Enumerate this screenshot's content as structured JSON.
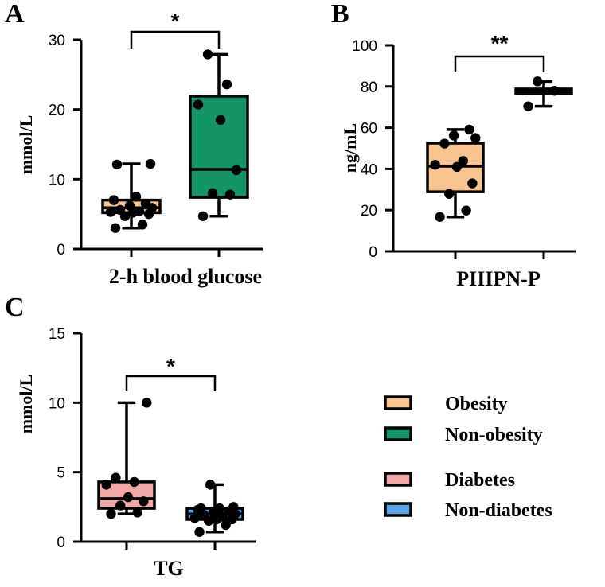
{
  "chart_data": [
    {
      "panel": "A",
      "type": "box",
      "ylabel": "mmol/L",
      "xlabel": "2-h blood glucose",
      "ylim": [
        0,
        30
      ],
      "yticks": [
        0,
        10,
        20,
        30
      ],
      "significance": "*",
      "series": [
        {
          "name": "Obesity",
          "color": "#F9C48E",
          "box": {
            "min": 3.0,
            "q1": 5.2,
            "median": 5.9,
            "q3": 7.0,
            "max": 12.2
          },
          "points": [
            3.0,
            3.5,
            4.7,
            5.0,
            5.2,
            5.3,
            5.4,
            5.6,
            5.9,
            6.2,
            6.5,
            7.0,
            7.5,
            12.1,
            12.2
          ]
        },
        {
          "name": "Non-obesity",
          "color": "#149566",
          "box": {
            "min": 4.7,
            "q1": 7.4,
            "median": 11.4,
            "q3": 21.9,
            "max": 27.9
          },
          "points": [
            4.7,
            7.8,
            8.0,
            11.3,
            18.5,
            20.7,
            23.6,
            27.9
          ]
        }
      ]
    },
    {
      "panel": "B",
      "type": "box",
      "ylabel": "ng/mL",
      "xlabel": "PIIIPN-P",
      "ylim": [
        0,
        100
      ],
      "yticks": [
        0,
        20,
        40,
        60,
        80,
        100
      ],
      "significance": "**",
      "series": [
        {
          "name": "Obesity",
          "color": "#F9C48E",
          "box": {
            "min": 16.7,
            "q1": 28.9,
            "median": 41.3,
            "q3": 52.5,
            "max": 59.1
          },
          "points": [
            16.7,
            19.8,
            27.9,
            33.0,
            41.0,
            42.0,
            43.9,
            52.3,
            55.0,
            56.2,
            59.1
          ]
        },
        {
          "name": "Non-obesity",
          "color": "#149566",
          "box": {
            "min": 70.4,
            "q1": 76.6,
            "median": 77.7,
            "q3": 78.8,
            "max": 82.5
          },
          "points": [
            70.4,
            77.9,
            82.5
          ]
        }
      ]
    },
    {
      "panel": "C",
      "type": "box",
      "ylabel": "mmol/L",
      "xlabel": "TG",
      "ylim": [
        0,
        15
      ],
      "yticks": [
        0,
        5,
        10,
        15
      ],
      "significance": "*",
      "series": [
        {
          "name": "Diabetes",
          "color": "#F4A7A7",
          "box": {
            "min": 2.0,
            "q1": 2.4,
            "median": 3.1,
            "q3": 4.3,
            "max": 10.0
          },
          "points": [
            2.0,
            2.1,
            2.6,
            2.9,
            3.2,
            4.1,
            4.3,
            4.6,
            10.0
          ]
        },
        {
          "name": "Non-diabetes",
          "color": "#5BA3E8",
          "box": {
            "min": 0.7,
            "q1": 1.6,
            "median": 2.0,
            "q3": 2.4,
            "max": 4.1
          },
          "points": [
            0.7,
            1.2,
            1.5,
            1.6,
            1.6,
            1.7,
            1.8,
            1.9,
            2.0,
            2.1,
            2.2,
            2.3,
            2.4,
            2.4,
            2.5,
            4.1
          ]
        }
      ]
    }
  ],
  "legend": [
    {
      "label": "Obesity",
      "color": "#F9C48E"
    },
    {
      "label": "Non-obesity",
      "color": "#149566"
    },
    {
      "label": "Diabetes",
      "color": "#F4A7A7"
    },
    {
      "label": "Non-diabetes",
      "color": "#5BA3E8"
    }
  ]
}
